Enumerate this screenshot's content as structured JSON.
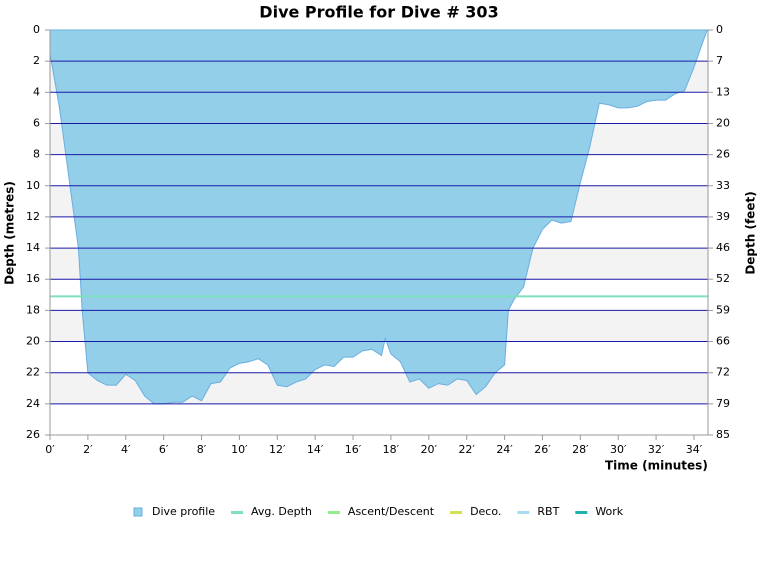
{
  "chart_data": {
    "type": "area",
    "title": "Dive Profile for Dive # 303",
    "x_label": "Time (minutes)",
    "y_label": "Depth (metres)",
    "y2_label": "Depth (feet)",
    "y_inverted": true,
    "grid": true,
    "legend": "bottom",
    "xlim": [
      0,
      34.74
    ],
    "ylim": [
      0,
      26
    ],
    "y2lim": [
      0,
      85.3
    ],
    "xticks": [
      {
        "value": 0,
        "label": "0′"
      },
      {
        "value": 2,
        "label": "2′"
      },
      {
        "value": 4,
        "label": "4′"
      },
      {
        "value": 6,
        "label": "6′"
      },
      {
        "value": 8,
        "label": "8′"
      },
      {
        "value": 10,
        "label": "10′"
      },
      {
        "value": 12,
        "label": "12′"
      },
      {
        "value": 14,
        "label": "14′"
      },
      {
        "value": 16,
        "label": "16′"
      },
      {
        "value": 18,
        "label": "18′"
      },
      {
        "value": 20,
        "label": "20′"
      },
      {
        "value": 22,
        "label": "22′"
      },
      {
        "value": 24,
        "label": "24′"
      },
      {
        "value": 26,
        "label": "26′"
      },
      {
        "value": 28,
        "label": "28′"
      },
      {
        "value": 30,
        "label": "30′"
      },
      {
        "value": 32,
        "label": "32′"
      },
      {
        "value": 34,
        "label": "34′"
      }
    ],
    "yticks": [
      0,
      2,
      4,
      6,
      8,
      10,
      12,
      14,
      16,
      18,
      20,
      22,
      24,
      26
    ],
    "y2ticks": [
      0,
      {
        "value": 6.56,
        "label": "7"
      },
      {
        "value": 13.12,
        "label": "13"
      },
      {
        "value": 19.69,
        "label": "20"
      },
      {
        "value": 26.25,
        "label": "26"
      },
      {
        "value": 32.81,
        "label": "33"
      },
      {
        "value": 39.37,
        "label": "39"
      },
      {
        "value": 45.93,
        "label": "46"
      },
      {
        "value": 52.49,
        "label": "52"
      },
      {
        "value": 59.06,
        "label": "59"
      },
      {
        "value": 65.62,
        "label": "66"
      },
      {
        "value": 72.18,
        "label": "72"
      },
      {
        "value": 78.74,
        "label": "79"
      },
      {
        "value": 85.3,
        "label": "85"
      }
    ],
    "x": [
      0,
      0.5,
      1,
      1.5,
      1.7,
      2,
      2.5,
      3,
      3.5,
      4,
      4.5,
      5,
      5.5,
      6,
      6.5,
      7,
      7.5,
      8,
      8.5,
      9,
      9.5,
      10,
      10.5,
      11,
      11.5,
      12,
      12.5,
      13,
      13.5,
      14,
      14.5,
      15,
      15.5,
      16,
      16.5,
      17,
      17.5,
      17.7,
      18,
      18.5,
      19,
      19.5,
      20,
      20.5,
      21,
      21.5,
      22,
      22.5,
      23,
      23.5,
      24,
      24.2,
      24.5,
      25,
      25.5,
      26,
      26.5,
      27,
      27.5,
      28,
      28.5,
      29,
      29.5,
      30,
      30.5,
      31,
      31.5,
      32,
      32.5,
      33,
      33.5,
      34,
      34.4,
      34.7
    ],
    "series": [
      {
        "name": "Dive profile",
        "color": "#94cfea",
        "values": [
          1.5,
          5,
          9.5,
          14,
          18,
          22,
          22.5,
          22.8,
          22.8,
          22.1,
          22.5,
          23.5,
          24,
          24,
          23.9,
          23.9,
          23.5,
          23.8,
          22.7,
          22.6,
          21.7,
          21.4,
          21.3,
          21.1,
          21.5,
          22.8,
          22.9,
          22.6,
          22.4,
          21.8,
          21.5,
          21.6,
          21.0,
          21.0,
          20.6,
          20.5,
          20.9,
          19.8,
          20.8,
          21.3,
          22.6,
          22.4,
          23.0,
          22.7,
          22.8,
          22.4,
          22.5,
          23.4,
          22.9,
          22.0,
          21.5,
          18,
          17.3,
          16.5,
          14.0,
          12.8,
          12.2,
          12.4,
          12.3,
          9.8,
          7.5,
          4.7,
          4.8,
          5.0,
          5.0,
          4.9,
          4.6,
          4.5,
          4.5,
          4.1,
          3.9,
          2.4,
          1.0,
          0
        ]
      },
      {
        "name": "Avg. Depth",
        "color": "#7fe0c0",
        "value": 17.1
      },
      {
        "name": "Ascent/Descent",
        "color": "#90ee90"
      },
      {
        "name": "Deco.",
        "color": "#d4e157"
      },
      {
        "name": "RBT",
        "color": "#a8dcf0"
      },
      {
        "name": "Work",
        "color": "#20b2aa"
      }
    ]
  }
}
